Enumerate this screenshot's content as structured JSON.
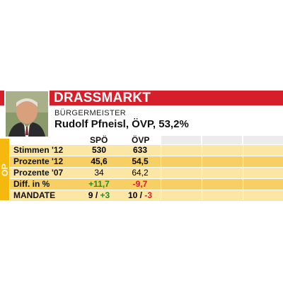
{
  "header": {
    "title": "DRASSMARKT",
    "subtitle": "BÜRGERMEISTER",
    "person": "Rudolf Pfneisl, ÖVP, 53,2%"
  },
  "side_tab": "OP",
  "columns": [
    "SPÖ",
    "ÖVP"
  ],
  "rows": [
    {
      "label": "Stimmen '12",
      "v1": "530",
      "v2": "633"
    },
    {
      "label": "Prozente '12",
      "v1": "45,6",
      "v2": "54,5"
    },
    {
      "label": "Prozente '07",
      "v1": "34",
      "v2": "64,2"
    },
    {
      "label": "Diff. in %",
      "v1": "+11,7",
      "v2": "-9,7"
    },
    {
      "label": "MANDATE",
      "v1a": "9",
      "sep1": " / ",
      "v1b": "+3",
      "v2a": "10",
      "sep2": " / ",
      "v2b": "-3"
    }
  ],
  "colors": {
    "red": "#d51f2b",
    "yellow": "#f5b80f",
    "row_light": "#fbe6a3",
    "row_dark": "#f7d063",
    "positive": "#1e8f2d"
  }
}
